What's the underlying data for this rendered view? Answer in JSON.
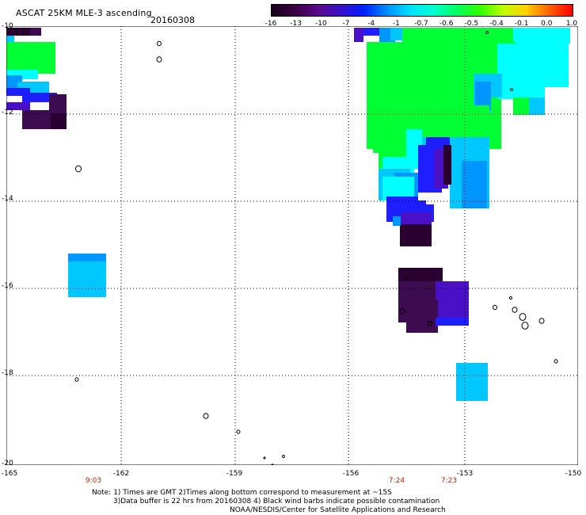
{
  "header": {
    "title": "ASCAT 25KM MLE-3 ascending",
    "date": "20160308"
  },
  "colorbar": {
    "labels": [
      "-16",
      "-13",
      "-10",
      "-7",
      "-4",
      "-1",
      "-0.7",
      "-0.6",
      "-0.5",
      "-0.4",
      "-0.1",
      "0.0",
      "1.0"
    ],
    "colors": [
      "#1a001a",
      "#3a0040",
      "#5a0a8a",
      "#3a10c8",
      "#0020ff",
      "#0090ff",
      "#00e0ff",
      "#00ffd0",
      "#00ff60",
      "#30ff00",
      "#c0ff00",
      "#ffd000",
      "#ff6000",
      "#ff0000"
    ]
  },
  "map": {
    "lat_labels": [
      "-10",
      "-12",
      "-14",
      "-16",
      "-18",
      "-20"
    ],
    "lon_labels": [
      "-165",
      "-162",
      "-159",
      "-156",
      "-153",
      "-150"
    ],
    "pass_times": [
      {
        "label": "9:03",
        "lon": -162.9
      },
      {
        "label": "7:24",
        "lon": -154.6
      },
      {
        "label": "7:23",
        "lon": -153.2
      }
    ]
  },
  "footer": {
    "note_line1": "Note: 1) Times are GMT 2)Times along bottom correspond to measurement at ~15S",
    "note_line2": "3)Data buffer is 22 hrs from 20160308 4) Black wind barbs indicate possible contamination",
    "credit": "NOAA/NESDIS/Center for Satellite Applications and Research"
  },
  "palette": {
    "green": "#00ff33",
    "cyan": "#00ffff",
    "sky": "#00c8ff",
    "azure": "#0096ff",
    "blue": "#1e1eff",
    "indigo": "#4a10c8",
    "violet": "#4b0082",
    "purple": "#3c0b50",
    "dark": "#2a0030"
  }
}
